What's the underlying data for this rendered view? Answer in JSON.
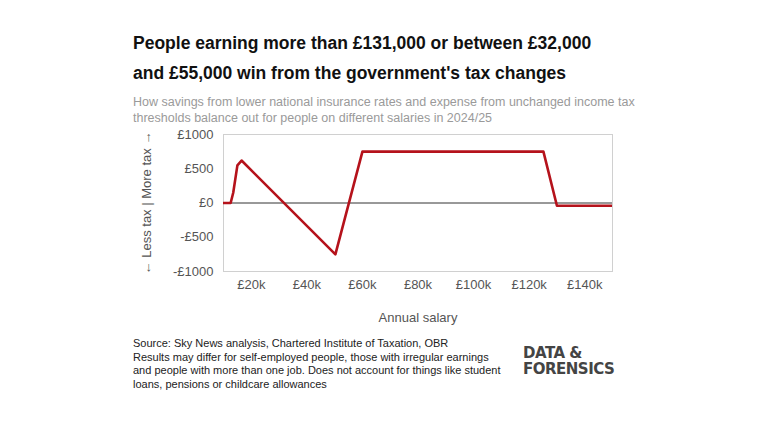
{
  "chart_data": {
    "type": "line",
    "title": "People earning more than £131,000 or between £32,000 and £55,000 win from the government's tax changes",
    "subtitle": "How savings from lower national insurance rates and expense from unchanged income tax thresholds balance out for people on different salaries in 2024/25",
    "x_label": "Annual salary",
    "y_label": "← Less tax | More tax →",
    "x": [
      10000,
      12570,
      13500,
      15000,
      16500,
      50270,
      60000,
      125140,
      130000,
      150000
    ],
    "values": [
      0,
      0,
      150,
      550,
      620,
      -750,
      750,
      750,
      -40,
      -40
    ],
    "color": "#b5121b",
    "reference_line": 0,
    "xlim": [
      10000,
      150000
    ],
    "xticks": [
      {
        "value": 20000,
        "label": "£20k"
      },
      {
        "value": 40000,
        "label": "£40k"
      },
      {
        "value": 60000,
        "label": "£60k"
      },
      {
        "value": 80000,
        "label": "£80k"
      },
      {
        "value": 100000,
        "label": "£100k"
      },
      {
        "value": 120000,
        "label": "£120k"
      },
      {
        "value": 140000,
        "label": "£140k"
      }
    ],
    "ylim": [
      -1000,
      1000
    ],
    "yticks": [
      {
        "value": -1000,
        "label": "-£1000"
      },
      {
        "value": -500,
        "label": "-£500"
      },
      {
        "value": 0,
        "label": "£0"
      },
      {
        "value": 500,
        "label": "£500"
      },
      {
        "value": 1000,
        "label": "£1000"
      }
    ],
    "grid": false,
    "source": "Source: Sky News analysis, Chartered Institute of Taxation, OBR",
    "note": "Results may differ for self-employed people, those with irregular earnings and people with more than one job. Does not account for things like student loans, pensions or childcare allowances",
    "logo": "DATA & FORENSICS"
  }
}
